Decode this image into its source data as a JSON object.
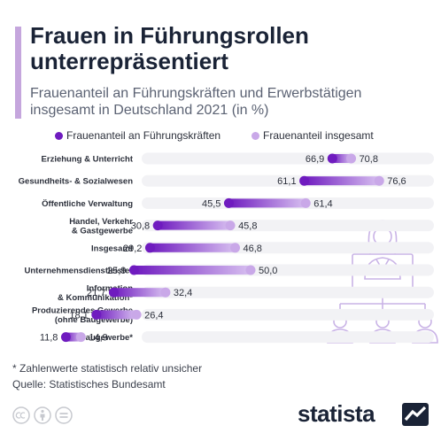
{
  "title": "Frauen in Führungsrollen unterrepräsentiert",
  "subtitle": "Frauenanteil an Führungskräften und Erwerbstätigen insgesamt in Deutschland 2021 (in %)",
  "footnote": "* Zahlenwerte statistisch relativ unsicher",
  "source": "Quelle: Statistisches Bundesamt",
  "brand": "statista",
  "colors": {
    "accent": "#c5a6dd",
    "dark_series": "#6f1bbf",
    "light_series": "#c9a8e8",
    "track": "#f2f2f5",
    "icon": "#c9b3e6"
  },
  "icons": [
    "cc-icon",
    "by-icon",
    "nd-icon",
    "statista-logo-icon",
    "businesswoman-icon",
    "team-icon"
  ],
  "chart_data": {
    "type": "dumbbell",
    "xlim": [
      0,
      80
    ],
    "series": [
      {
        "name": "Frauenanteil an Führungskräften",
        "color": "#6f1bbf"
      },
      {
        "name": "Frauenanteil insgesamt",
        "color": "#c9a8e8"
      }
    ],
    "rows": [
      {
        "label": [
          "Erziehung & Unterricht"
        ],
        "lead": 66.9,
        "total": 70.8,
        "lead_label": "66,9",
        "total_label": "70,8"
      },
      {
        "label": [
          "Gesundheits- & Sozialwesen"
        ],
        "lead": 61.1,
        "total": 76.6,
        "lead_label": "61,1",
        "total_label": "76,6"
      },
      {
        "label": [
          "Öffentliche Verwaltung"
        ],
        "lead": 45.5,
        "total": 61.4,
        "lead_label": "45,5",
        "total_label": "61,4"
      },
      {
        "label": [
          "Handel, Verkehr",
          "& Gastgewerbe"
        ],
        "lead": 30.8,
        "total": 45.8,
        "lead_label": "30,8",
        "total_label": "45,8"
      },
      {
        "label": [
          "Insgesamt"
        ],
        "lead": 29.2,
        "total": 46.8,
        "lead_label": "29,2",
        "total_label": "46,8"
      },
      {
        "label": [
          "Unternehmensdienstleister"
        ],
        "lead": 25.9,
        "total": 50.0,
        "lead_label": "25,9",
        "total_label": "50,0"
      },
      {
        "label": [
          "Information",
          "& Kommunikation*"
        ],
        "lead": 21.7,
        "total": 32.4,
        "lead_label": "21,7",
        "total_label": "32,4"
      },
      {
        "label": [
          "Produzierendes Gewerbe",
          "(ohne Baugewerbe)"
        ],
        "lead": 18.1,
        "total": 26.4,
        "lead_label": "18,1",
        "total_label": "26,4"
      },
      {
        "label": [
          "Baugewerbe*"
        ],
        "lead": 11.8,
        "total": 14.9,
        "lead_label": "11,8",
        "total_label": "14,9"
      }
    ]
  }
}
